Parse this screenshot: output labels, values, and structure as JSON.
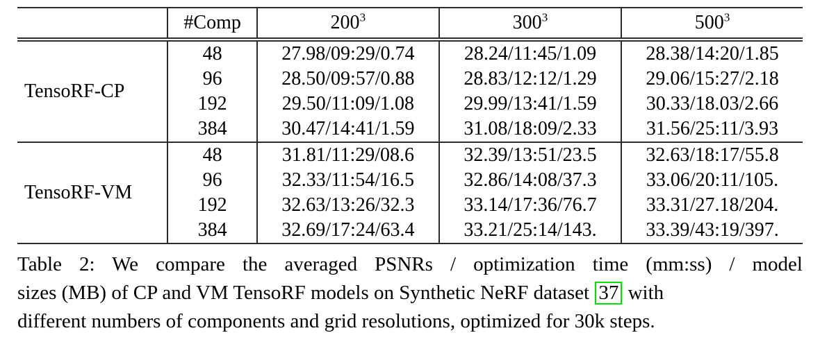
{
  "table": {
    "header": {
      "comp_label": "#Comp",
      "resolutions": [
        {
          "base": "200",
          "exp": "3"
        },
        {
          "base": "300",
          "exp": "3"
        },
        {
          "base": "500",
          "exp": "3"
        }
      ]
    },
    "groups": [
      {
        "model": "TensoRF-CP",
        "rows": [
          {
            "comp": "48",
            "r200": "27.98/09:29/0.74",
            "r300": "28.24/11:45/1.09",
            "r500": "28.38/14:20/1.85"
          },
          {
            "comp": "96",
            "r200": "28.50/09:57/0.88",
            "r300": "28.83/12:12/1.29",
            "r500": "29.06/15:27/2.18"
          },
          {
            "comp": "192",
            "r200": "29.50/11:09/1.08",
            "r300": "29.99/13:41/1.59",
            "r500": "30.33/18.03/2.66"
          },
          {
            "comp": "384",
            "r200": "30.47/14:41/1.59",
            "r300": "31.08/18:09/2.33",
            "r500": "31.56/25:11/3.93"
          }
        ]
      },
      {
        "model": "TensoRF-VM",
        "rows": [
          {
            "comp": "48",
            "r200": "31.81/11:29/08.6",
            "r300": "32.39/13:51/23.5",
            "r500": "32.63/18:17/55.8"
          },
          {
            "comp": "96",
            "r200": "32.33/11:54/16.5",
            "r300": "32.86/14:08/37.3",
            "r500": "33.06/20:11/105."
          },
          {
            "comp": "192",
            "r200": "32.63/13:26/32.3",
            "r300": "33.14/17:36/76.7",
            "r500": "33.31/27.18/204."
          },
          {
            "comp": "384",
            "r200": "32.69/17:24/63.4",
            "r300": "33.21/25:14/143.",
            "r500": "33.39/43:19/397."
          }
        ]
      }
    ]
  },
  "caption": {
    "line1": "Table 2: We compare the averaged PSNRs / optimization time (mm:ss) / model",
    "line2_pre": "sizes (MB) of CP and VM TensoRF models on Synthetic NeRF dataset",
    "citation": "37",
    "line2_post": "with",
    "line3": "different numbers of components and grid resolutions, optimized for 30k steps."
  },
  "colors": {
    "citation_border": "#00e000",
    "text": "#000000",
    "rule": "#2b2b2b"
  }
}
